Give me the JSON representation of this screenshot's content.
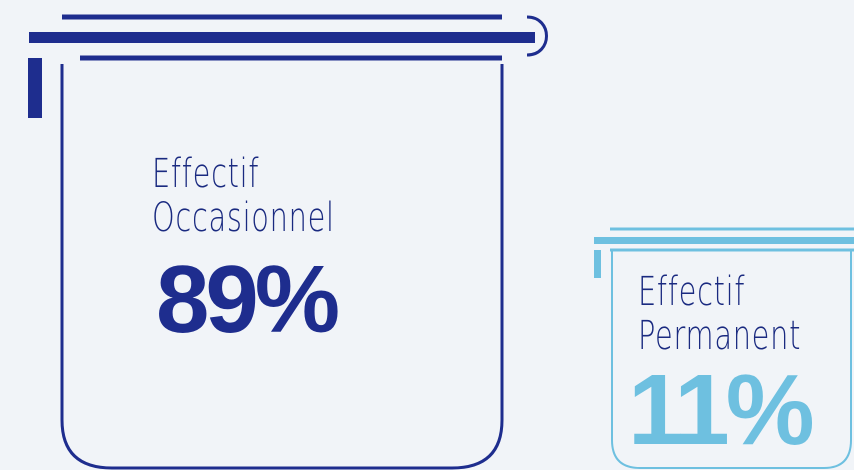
{
  "chart_data": {
    "type": "pictograph",
    "categories": [
      "Effectif Occasionnel",
      "Effectif Permanent"
    ],
    "series": [
      {
        "values": [
          89,
          11
        ]
      }
    ],
    "unit": "%",
    "items": [
      {
        "label_line1": "Effectif",
        "label_line2": "Occasionnel",
        "value": 89,
        "value_text": "89%",
        "color": "#1e2d8e"
      },
      {
        "label_line1": "Effectif",
        "label_line2": "Permanent",
        "value": 11,
        "value_text": "11%",
        "color": "#6ec0e0"
      }
    ]
  }
}
